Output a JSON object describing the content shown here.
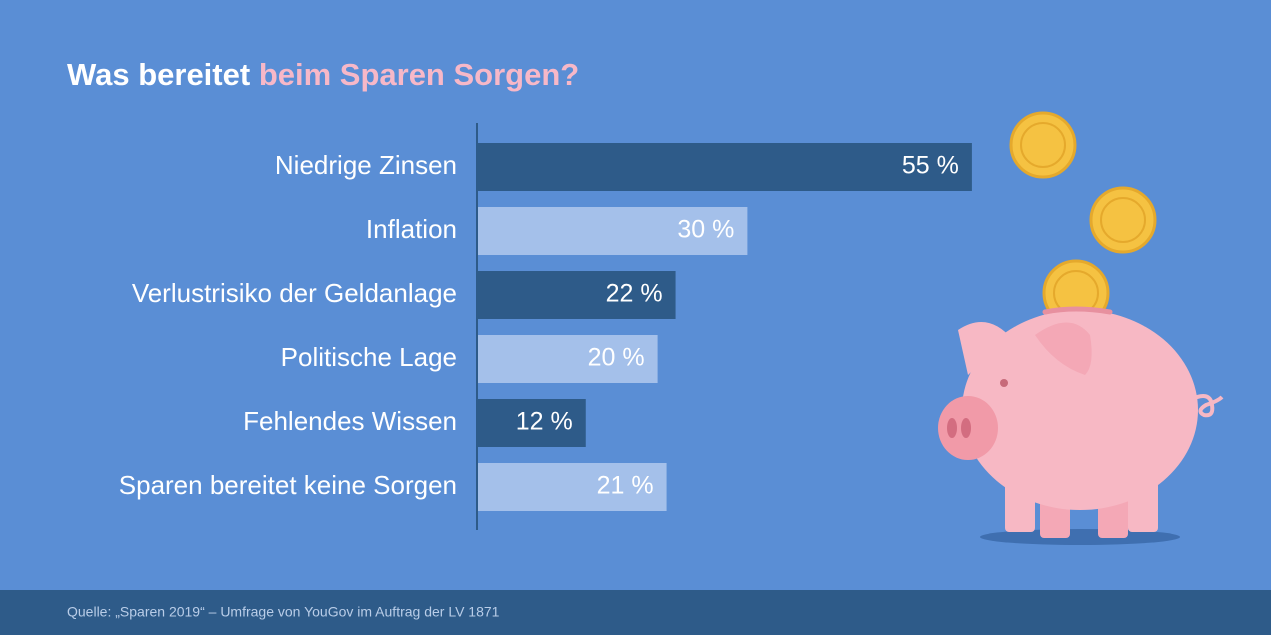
{
  "chart_data": {
    "type": "hbar",
    "title": [
      "Was bereitet",
      "beim Sparen Sorgen?"
    ],
    "categories": [
      "Niedrige Zinsen",
      "Inflation",
      "Verlustrisiko der Geldanlage",
      "Politische Lage",
      "Fehlendes Wissen",
      "Sparen bereitet keine Sorgen"
    ],
    "values": [
      55,
      30,
      22,
      20,
      12,
      21
    ],
    "value_labels": [
      "55 %",
      "30 %",
      "22 %",
      "20 %",
      "12 %",
      "21 %"
    ],
    "colors": [
      "#2e5b89",
      "#a4c0ea",
      "#2e5b89",
      "#a4c0ea",
      "#2e5b89",
      "#a4c0ea"
    ],
    "source": "Quelle: „Sparen 2019“ – Umfrage von YouGov im Auftrag der LV 1871"
  }
}
